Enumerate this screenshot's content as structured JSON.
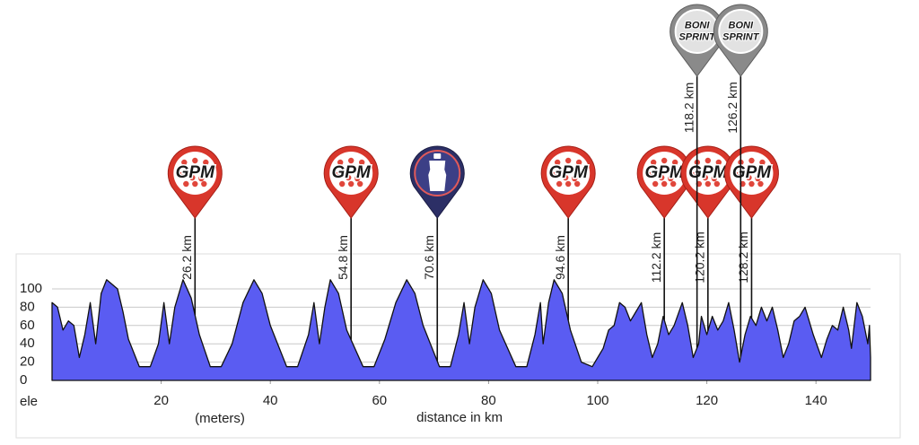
{
  "chart_data": {
    "type": "area",
    "color": "#5a5cf2",
    "grid": true,
    "y_label": "ele",
    "y_unit_label": "(meters)",
    "x_label": "distance in km",
    "xlim": [
      0,
      150
    ],
    "ylim": [
      0,
      100
    ],
    "xticks": [
      20,
      40,
      60,
      80,
      100,
      120,
      140
    ],
    "yticks": [
      0,
      20,
      40,
      60,
      80,
      100
    ],
    "x": [
      0,
      1,
      2,
      3,
      4,
      5,
      6,
      7,
      8,
      9,
      10,
      11,
      12,
      13,
      14,
      16,
      18,
      19.5,
      20.5,
      21.5,
      22.5,
      24,
      25.5,
      27,
      29,
      31,
      33,
      35,
      37,
      38.5,
      40,
      43,
      45,
      47,
      48,
      49,
      50,
      51,
      52.5,
      54,
      57,
      59,
      61,
      63,
      65,
      66.5,
      68,
      71,
      73,
      74.5,
      75.5,
      76.5,
      77.5,
      79,
      80.5,
      82,
      85,
      87,
      88.5,
      89.5,
      90,
      91,
      92,
      93.5,
      95,
      97,
      99,
      100,
      101,
      102,
      103,
      104,
      105,
      106,
      107,
      108,
      109,
      110,
      111,
      112,
      113,
      114,
      115.5,
      116.5,
      117.5,
      118.5,
      119,
      120,
      121,
      122,
      123,
      124,
      125,
      126,
      127,
      128,
      129,
      130,
      131,
      132,
      133,
      134,
      135,
      136,
      137,
      138,
      139.5,
      141,
      142,
      143,
      144,
      145,
      146,
      146.5,
      147.5,
      148.5,
      149.5,
      149.8,
      150
    ],
    "values": [
      85,
      80,
      55,
      65,
      60,
      25,
      50,
      85,
      40,
      95,
      110,
      105,
      100,
      75,
      45,
      15,
      15,
      40,
      85,
      40,
      80,
      110,
      90,
      50,
      15,
      15,
      40,
      85,
      110,
      95,
      60,
      15,
      15,
      50,
      85,
      40,
      80,
      110,
      95,
      55,
      15,
      15,
      45,
      85,
      110,
      95,
      60,
      15,
      15,
      50,
      85,
      40,
      80,
      110,
      95,
      55,
      15,
      15,
      50,
      85,
      40,
      85,
      110,
      95,
      55,
      20,
      15,
      25,
      35,
      55,
      60,
      85,
      80,
      65,
      75,
      85,
      50,
      25,
      40,
      70,
      50,
      60,
      85,
      60,
      25,
      40,
      70,
      50,
      70,
      55,
      65,
      85,
      55,
      20,
      50,
      70,
      60,
      80,
      65,
      80,
      55,
      25,
      40,
      65,
      70,
      80,
      50,
      25,
      45,
      60,
      55,
      80,
      55,
      35,
      85,
      70,
      40,
      60,
      25
    ],
    "markers": [
      {
        "km": 26.2,
        "label": "26.2 km",
        "kind": "gpm",
        "icon_lines": [
          "GPM"
        ]
      },
      {
        "km": 54.8,
        "label": "54.8 km",
        "kind": "gpm",
        "icon_lines": [
          "GPM"
        ]
      },
      {
        "km": 70.6,
        "label": "70.6 km",
        "kind": "water"
      },
      {
        "km": 94.6,
        "label": "94.6 km",
        "kind": "gpm",
        "icon_lines": [
          "GPM"
        ]
      },
      {
        "km": 112.2,
        "label": "112.2 km",
        "kind": "gpm",
        "icon_lines": [
          "GPM"
        ]
      },
      {
        "km": 118.2,
        "label": "118.2 km",
        "kind": "sprint",
        "icon_lines": [
          "BONI",
          "SPRINT"
        ]
      },
      {
        "km": 120.2,
        "label": "120.2 km",
        "kind": "gpm",
        "icon_lines": [
          "GPM"
        ]
      },
      {
        "km": 126.2,
        "label": "126.2 km",
        "kind": "sprint",
        "icon_lines": [
          "BONI",
          "SPRINT"
        ]
      },
      {
        "km": 128.2,
        "label": "128.2 km",
        "kind": "gpm",
        "icon_lines": [
          "GPM"
        ]
      }
    ]
  }
}
